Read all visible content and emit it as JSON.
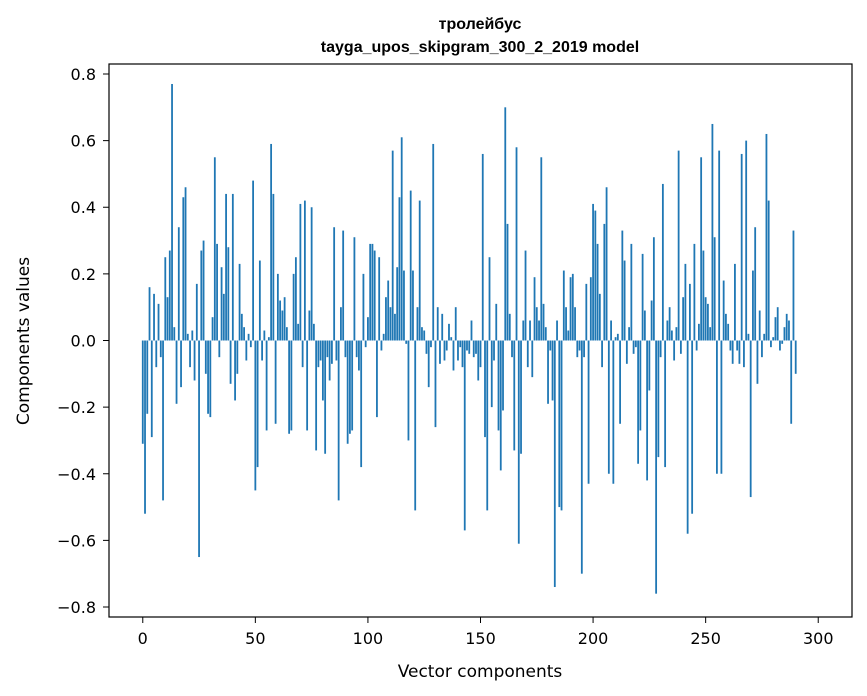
{
  "chart_data": {
    "type": "bar",
    "title": "тролейбус",
    "subtitle": "tayga_upos_skipgram_300_2_2019 model",
    "xlabel": "Vector components",
    "ylabel": "Components values",
    "xlim": [
      -15,
      315
    ],
    "ylim": [
      -0.83,
      0.83
    ],
    "xticks": [
      0,
      50,
      100,
      150,
      200,
      250,
      300
    ],
    "yticks": [
      -0.8,
      -0.6,
      -0.4,
      -0.2,
      0.0,
      0.2,
      0.4,
      0.6,
      0.8
    ],
    "ytick_labels": [
      "−0.8",
      "−0.6",
      "−0.4",
      "−0.2",
      "0.0",
      "0.2",
      "0.4",
      "0.6",
      "0.8"
    ],
    "bar_color": "#1f77b4",
    "values": [
      -0.31,
      -0.52,
      -0.22,
      0.16,
      -0.29,
      0.14,
      -0.08,
      0.11,
      -0.05,
      -0.48,
      0.25,
      0.13,
      0.27,
      0.77,
      0.04,
      -0.19,
      0.34,
      -0.14,
      0.43,
      0.46,
      0.02,
      -0.08,
      0.03,
      -0.12,
      0.17,
      -0.65,
      0.27,
      0.3,
      -0.1,
      -0.22,
      -0.23,
      0.07,
      0.55,
      0.29,
      -0.05,
      0.22,
      0.14,
      0.44,
      0.28,
      -0.13,
      0.44,
      -0.18,
      -0.1,
      0.23,
      0.08,
      0.04,
      -0.06,
      0.02,
      -0.02,
      0.48,
      -0.45,
      -0.38,
      0.24,
      -0.06,
      0.03,
      -0.27,
      0.01,
      0.59,
      0.44,
      -0.25,
      0.2,
      0.12,
      0.09,
      0.13,
      0.04,
      -0.28,
      -0.27,
      0.2,
      0.25,
      0.05,
      0.41,
      -0.08,
      0.42,
      -0.27,
      0.09,
      0.4,
      0.05,
      -0.33,
      -0.08,
      -0.06,
      -0.18,
      -0.34,
      -0.05,
      -0.12,
      -0.07,
      0.34,
      -0.06,
      -0.48,
      0.1,
      0.33,
      -0.05,
      -0.31,
      -0.28,
      -0.27,
      0.31,
      -0.05,
      -0.09,
      -0.38,
      0.2,
      -0.02,
      0.07,
      0.29,
      0.29,
      0.27,
      -0.23,
      0.25,
      -0.03,
      0.02,
      0.13,
      0.18,
      0.1,
      0.57,
      0.08,
      0.22,
      0.43,
      0.61,
      0.21,
      -0.01,
      -0.3,
      0.45,
      0.21,
      -0.51,
      0.1,
      0.42,
      0.04,
      0.03,
      -0.04,
      -0.14,
      -0.02,
      0.59,
      -0.26,
      0.1,
      -0.07,
      0.08,
      -0.06,
      -0.03,
      0.05,
      0.01,
      -0.09,
      0.1,
      -0.06,
      -0.02,
      -0.08,
      -0.57,
      -0.03,
      -0.04,
      0.06,
      -0.05,
      -0.04,
      -0.12,
      -0.08,
      0.56,
      -0.29,
      -0.51,
      0.25,
      -0.2,
      -0.06,
      0.11,
      -0.27,
      -0.39,
      -0.21,
      0.7,
      0.35,
      0.08,
      -0.05,
      -0.33,
      0.58,
      -0.61,
      -0.34,
      0.06,
      0.27,
      -0.08,
      0.06,
      -0.11,
      0.19,
      0.1,
      0.06,
      0.55,
      0.11,
      0.04,
      -0.19,
      -0.03,
      -0.18,
      -0.74,
      0.06,
      -0.5,
      -0.51,
      0.21,
      0.1,
      0.03,
      0.19,
      0.2,
      0.1,
      -0.05,
      -0.03,
      -0.7,
      -0.05,
      0.17,
      -0.43,
      0.19,
      0.41,
      0.39,
      0.29,
      0.14,
      -0.08,
      0.35,
      0.46,
      -0.4,
      0.06,
      -0.43,
      0.01,
      0.02,
      -0.25,
      0.33,
      0.24,
      -0.07,
      0.04,
      0.29,
      -0.04,
      -0.02,
      -0.37,
      -0.27,
      0.26,
      0.09,
      -0.42,
      -0.15,
      0.12,
      0.31,
      -0.76,
      -0.35,
      -0.05,
      0.47,
      -0.38,
      0.06,
      0.1,
      0.03,
      -0.06,
      0.04,
      0.57,
      -0.04,
      0.13,
      0.23,
      -0.58,
      0.17,
      -0.52,
      0.29,
      -0.03,
      0.05,
      0.55,
      0.27,
      0.13,
      0.11,
      0.04,
      0.65,
      0.31,
      -0.4,
      0.57,
      -0.4,
      0.18,
      0.08,
      0.05,
      -0.03,
      -0.07,
      0.23,
      -0.03,
      -0.07,
      0.56,
      -0.08,
      0.6,
      0.02,
      -0.47,
      0.21,
      0.34,
      -0.13,
      0.09,
      -0.05,
      0.02,
      0.62,
      0.42,
      -0.02,
      0.01,
      0.07,
      0.1,
      -0.03,
      -0.01,
      0.04,
      0.08,
      0.06,
      -0.25,
      0.33,
      -0.1
    ]
  }
}
